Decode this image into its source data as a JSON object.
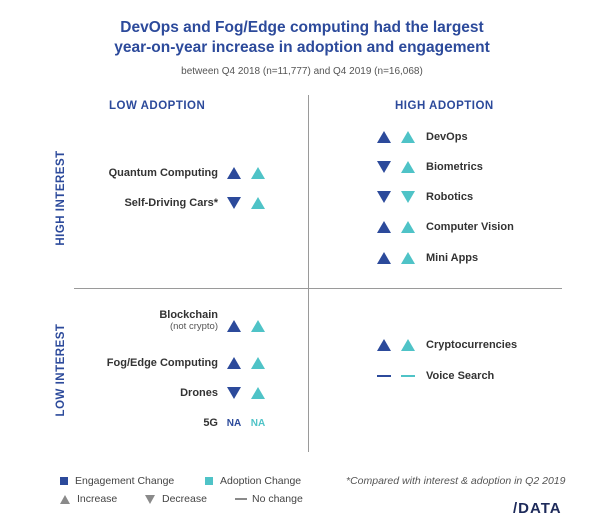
{
  "title": {
    "line1": "DevOps and Fog/Edge computing had the largest",
    "line2": "year-on-year increase in adoption and engagement",
    "subtitle": "between Q4 2018 (n=11,777) and Q4 2019 (n=16,068)"
  },
  "axes": {
    "low_adoption": "LOW ADOPTION",
    "high_adoption": "HIGH ADOPTION",
    "high_interest": "HIGH INTEREST",
    "low_interest": "LOW INTEREST"
  },
  "colors": {
    "engagement": "#2c4a9b",
    "adoption": "#4fc3c7",
    "title": "#2c4a9b",
    "neutral": "#8a8a8a"
  },
  "quadrants": {
    "high_interest_low_adoption": [
      {
        "label": "Quantum Computing",
        "engagement": "increase",
        "adoption": "increase"
      },
      {
        "label": "Self-Driving Cars*",
        "engagement": "decrease",
        "adoption": "increase"
      }
    ],
    "high_interest_high_adoption": [
      {
        "label": "DevOps",
        "engagement": "increase",
        "adoption": "increase"
      },
      {
        "label": "Biometrics",
        "engagement": "decrease",
        "adoption": "increase"
      },
      {
        "label": "Robotics",
        "engagement": "decrease",
        "adoption": "decrease"
      },
      {
        "label": "Computer Vision",
        "engagement": "increase",
        "adoption": "increase"
      },
      {
        "label": "Mini Apps",
        "engagement": "increase",
        "adoption": "increase"
      }
    ],
    "low_interest_low_adoption": [
      {
        "label": "Blockchain",
        "sublabel": "(not crypto)",
        "engagement": "increase",
        "adoption": "increase"
      },
      {
        "label": "Fog/Edge Computing",
        "engagement": "increase",
        "adoption": "increase"
      },
      {
        "label": "Drones",
        "engagement": "decrease",
        "adoption": "increase"
      },
      {
        "label": "5G",
        "engagement": "na",
        "adoption": "na",
        "engagement_text": "NA",
        "adoption_text": "NA"
      }
    ],
    "low_interest_high_adoption": [
      {
        "label": "Cryptocurrencies",
        "engagement": "increase",
        "adoption": "increase"
      },
      {
        "label": "Voice Search",
        "engagement": "nochange",
        "adoption": "nochange"
      }
    ]
  },
  "legend": {
    "engagement_change": "Engagement Change",
    "adoption_change": "Adoption Change",
    "increase": "Increase",
    "decrease": "Decrease",
    "no_change": "No change",
    "footnote": "*Compared with interest & adoption in Q2 2019"
  },
  "logo": "/DATA"
}
